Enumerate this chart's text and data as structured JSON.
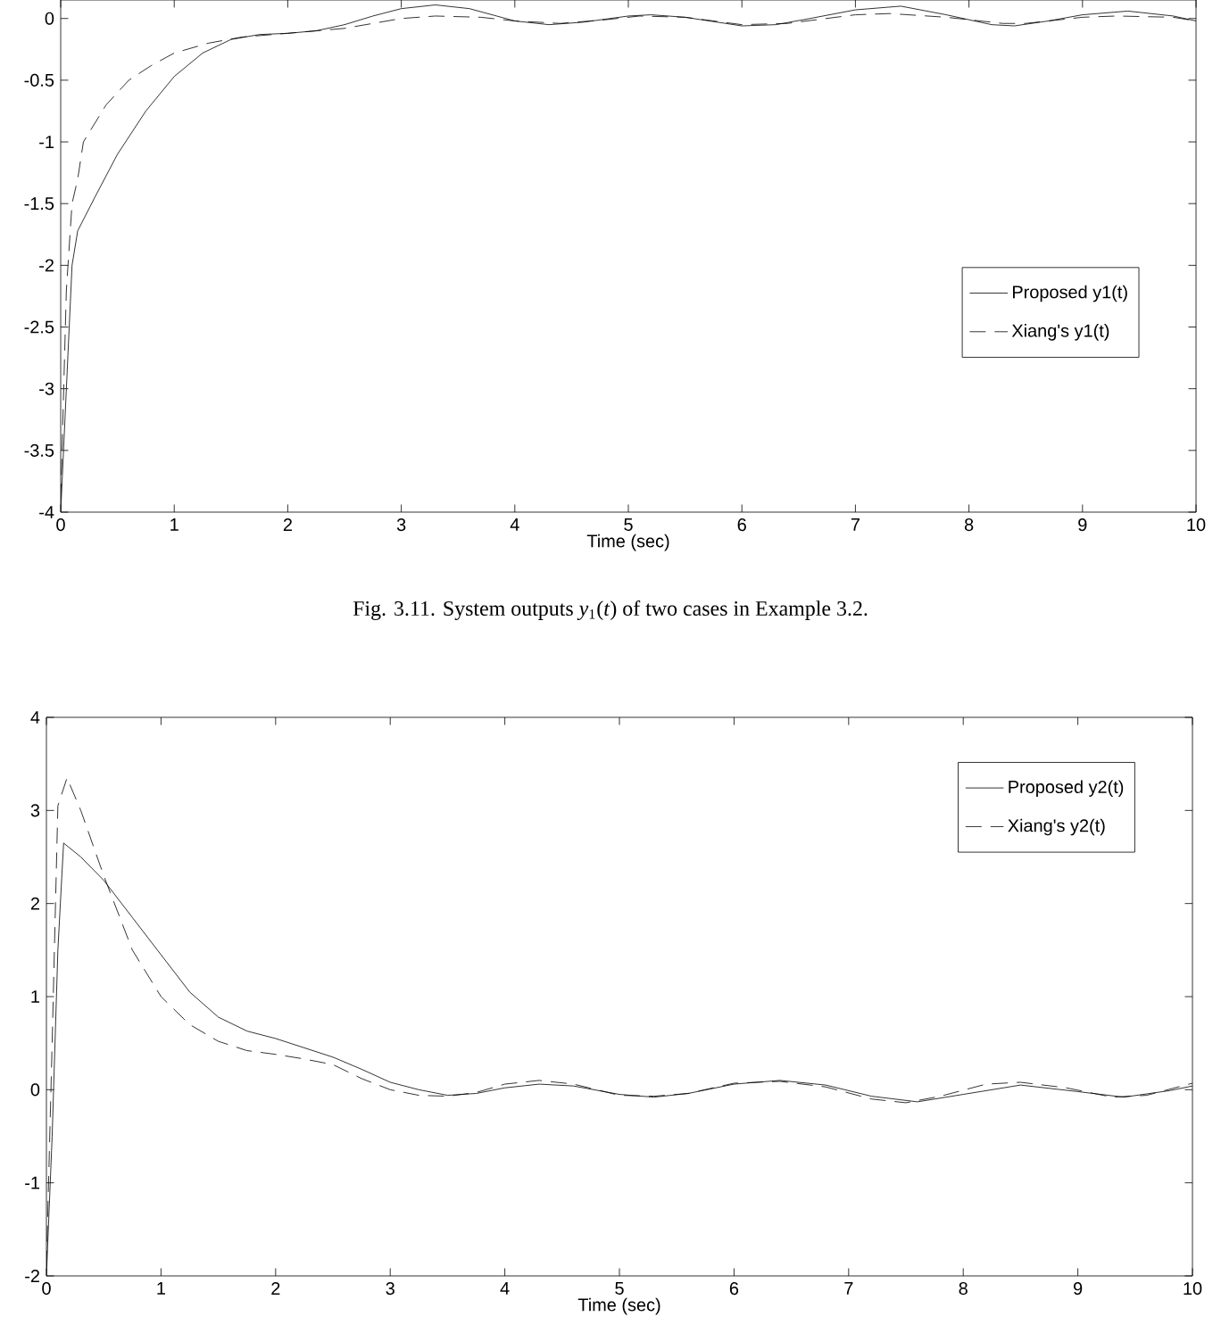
{
  "chart_data": [
    {
      "type": "line",
      "xlabel": "Time (sec)",
      "xlim": [
        0,
        10
      ],
      "ylim": [
        -4,
        0.15
      ],
      "xticks": [
        0,
        1,
        2,
        3,
        4,
        5,
        6,
        7,
        8,
        9,
        10
      ],
      "yticks": [
        -4,
        -3.5,
        -3,
        -2.5,
        -2,
        -1.5,
        -1,
        -0.5,
        0
      ],
      "legend": "right",
      "grid": false,
      "annotations": [
        "Fig. 3.11. System outputs *y*$_{1}$(*t*) of two cases in Example 3.2."
      ],
      "series": [
        {
          "name": "Proposed y1(t)",
          "color": "#000000",
          "line_style": "solid",
          "x": [
            0,
            0.05,
            0.1,
            0.15,
            0.3,
            0.5,
            0.75,
            1,
            1.25,
            1.5,
            1.75,
            2,
            2.25,
            2.5,
            2.75,
            3,
            3.3,
            3.6,
            4,
            4.3,
            4.6,
            5,
            5.2,
            5.5,
            6,
            6.3,
            6.6,
            7,
            7.4,
            7.8,
            8.2,
            8.4,
            8.7,
            9,
            9.4,
            9.8,
            10
          ],
          "values": [
            -4,
            -3.0,
            -2.0,
            -1.72,
            -1.45,
            -1.1,
            -0.75,
            -0.47,
            -0.28,
            -0.17,
            -0.13,
            -0.12,
            -0.1,
            -0.05,
            0.02,
            0.08,
            0.11,
            0.08,
            -0.02,
            -0.05,
            -0.03,
            0.02,
            0.03,
            0.01,
            -0.06,
            -0.05,
            0,
            0.07,
            0.1,
            0.03,
            -0.05,
            -0.06,
            -0.02,
            0.03,
            0.06,
            0.02,
            -0.02
          ]
        },
        {
          "name": "Xiang's y1(t)",
          "color": "#000000",
          "line_style": "dashed",
          "x": [
            0,
            0.05,
            0.1,
            0.15,
            0.2,
            0.4,
            0.6,
            0.8,
            1,
            1.3,
            1.6,
            2,
            2.5,
            3,
            3.3,
            3.7,
            4,
            4.4,
            4.8,
            5.1,
            5.5,
            6,
            6.4,
            7,
            7.3,
            7.8,
            8.3,
            8.5,
            9,
            9.3,
            9.8,
            10
          ],
          "values": [
            -3.9,
            -2.2,
            -1.5,
            -1.3,
            -1.0,
            -0.7,
            -0.5,
            -0.38,
            -0.28,
            -0.2,
            -0.15,
            -0.12,
            -0.08,
            0,
            0.02,
            0.01,
            -0.02,
            -0.04,
            -0.01,
            0.02,
            0.01,
            -0.05,
            -0.04,
            0.03,
            0.04,
            0.01,
            -0.04,
            -0.04,
            0.01,
            0.02,
            0.01,
            -0.02
          ]
        }
      ]
    },
    {
      "type": "line",
      "xlabel": "Time (sec)",
      "xlim": [
        0,
        10
      ],
      "ylim": [
        -2,
        4
      ],
      "xticks": [
        0,
        1,
        2,
        3,
        4,
        5,
        6,
        7,
        8,
        9,
        10
      ],
      "yticks": [
        -2,
        -1,
        0,
        1,
        2,
        3,
        4
      ],
      "legend": "top right",
      "grid": false,
      "series": [
        {
          "name": "Proposed y2(t)",
          "color": "#000000",
          "line_style": "solid",
          "x": [
            0,
            0.05,
            0.1,
            0.15,
            0.3,
            0.5,
            0.75,
            1,
            1.25,
            1.5,
            1.75,
            2,
            2.25,
            2.5,
            2.75,
            3,
            3.25,
            3.5,
            3.75,
            4,
            4.3,
            4.6,
            5,
            5.3,
            5.6,
            6,
            6.4,
            6.8,
            7.2,
            7.6,
            8,
            8.5,
            9,
            9.4,
            9.8,
            10
          ],
          "values": [
            -2,
            -0.5,
            1.5,
            2.65,
            2.5,
            2.25,
            1.85,
            1.45,
            1.05,
            0.78,
            0.63,
            0.55,
            0.45,
            0.35,
            0.22,
            0.08,
            0,
            -0.06,
            -0.04,
            0.02,
            0.06,
            0.04,
            -0.05,
            -0.08,
            -0.04,
            0.06,
            0.1,
            0.05,
            -0.07,
            -0.13,
            -0.05,
            0.05,
            -0.02,
            -0.08,
            -0.01,
            0.04
          ]
        },
        {
          "name": "Xiang's y2(t)",
          "color": "#000000",
          "line_style": "dashed",
          "x": [
            0,
            0.05,
            0.1,
            0.18,
            0.3,
            0.5,
            0.75,
            1,
            1.25,
            1.5,
            1.75,
            2,
            2.25,
            2.5,
            2.75,
            3,
            3.25,
            3.5,
            3.75,
            4,
            4.3,
            4.6,
            5,
            5.3,
            5.6,
            6,
            6.4,
            6.8,
            7.2,
            7.5,
            7.8,
            8.2,
            8.5,
            8.9,
            9.3,
            9.6,
            10
          ],
          "values": [
            -1.9,
            0.5,
            3.05,
            3.35,
            3.0,
            2.3,
            1.5,
            1.0,
            0.7,
            0.52,
            0.42,
            0.38,
            0.33,
            0.27,
            0.12,
            0.0,
            -0.06,
            -0.07,
            -0.03,
            0.06,
            0.1,
            0.06,
            -0.06,
            -0.07,
            -0.04,
            0.07,
            0.09,
            0.03,
            -0.1,
            -0.14,
            -0.07,
            0.06,
            0.08,
            0.02,
            -0.08,
            -0.06,
            0.07
          ]
        }
      ]
    }
  ]
}
